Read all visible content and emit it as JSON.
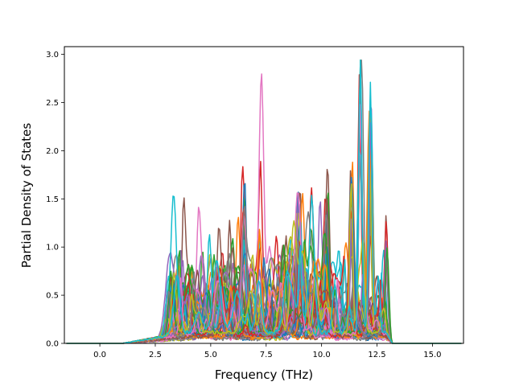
{
  "chart_data": {
    "type": "line",
    "title": "",
    "xlabel": "Frequency (THz)",
    "ylabel": "Partial Density of States",
    "xlim": [
      -1.6,
      16.4
    ],
    "ylim": [
      0.0,
      3.08
    ],
    "xticks": [
      0.0,
      2.5,
      5.0,
      7.5,
      10.0,
      12.5,
      15.0
    ],
    "xtick_labels": [
      "0.0",
      "2.5",
      "5.0",
      "7.5",
      "10.0",
      "12.5",
      "15.0"
    ],
    "yticks": [
      0.0,
      0.5,
      1.0,
      1.5,
      2.0,
      2.5,
      3.0
    ],
    "ytick_labels": [
      "0.0",
      "0.5",
      "1.0",
      "1.5",
      "2.0",
      "2.5",
      "3.0"
    ],
    "grid": false,
    "legend": "none",
    "series_count": 60,
    "colors": [
      "#1f77b4",
      "#ff7f0e",
      "#2ca02c",
      "#d62728",
      "#9467bd",
      "#8c564b",
      "#e377c2",
      "#7f7f7f",
      "#bcbd22",
      "#17becf"
    ],
    "x_range_of_data": [
      -1.5,
      16.3
    ],
    "notable_peaks": [
      {
        "x": 11.75,
        "y": 2.94
      },
      {
        "x": 12.2,
        "y": 2.45
      },
      {
        "x": 12.95,
        "y": 1.37
      },
      {
        "x": 11.35,
        "y": 1.7
      },
      {
        "x": 7.25,
        "y": 1.44
      },
      {
        "x": 6.5,
        "y": 1.3
      },
      {
        "x": 9.0,
        "y": 1.08
      },
      {
        "x": 10.25,
        "y": 1.1
      }
    ]
  }
}
